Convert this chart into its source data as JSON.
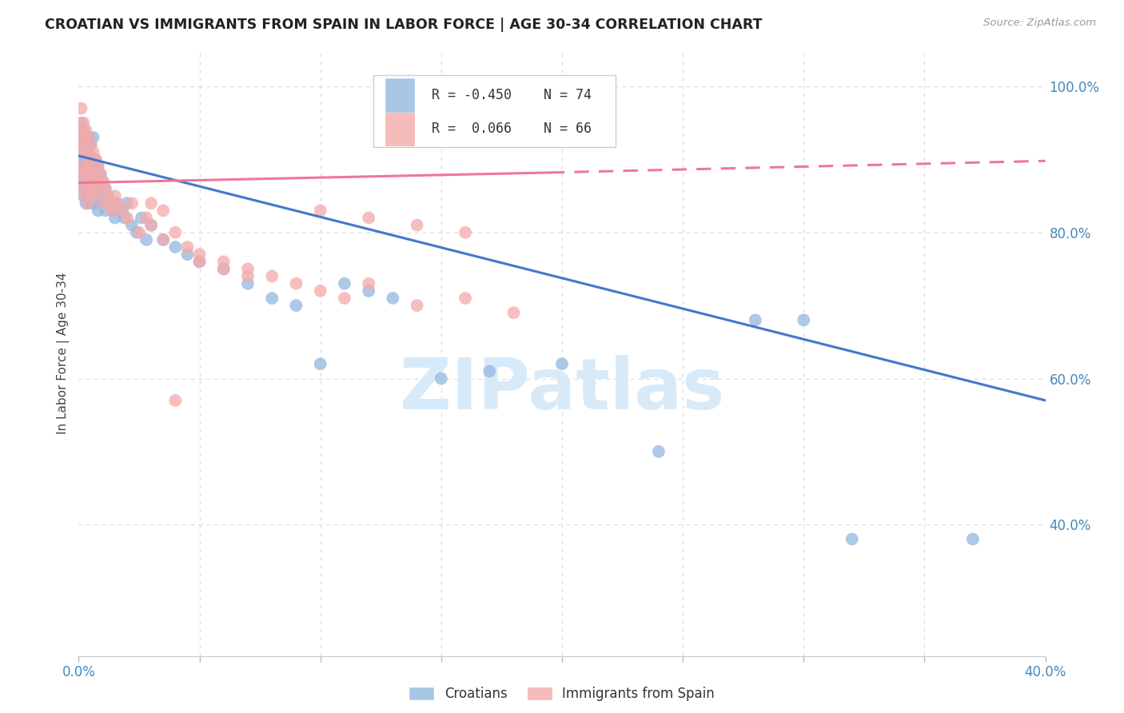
{
  "title": "CROATIAN VS IMMIGRANTS FROM SPAIN IN LABOR FORCE | AGE 30-34 CORRELATION CHART",
  "source": "Source: ZipAtlas.com",
  "ylabel": "In Labor Force | Age 30-34",
  "xlim": [
    0.0,
    0.4
  ],
  "ylim": [
    0.22,
    1.05
  ],
  "ytick_vals": [
    0.4,
    0.6,
    0.8,
    1.0
  ],
  "ytick_labels": [
    "40.0%",
    "60.0%",
    "80.0%",
    "100.0%"
  ],
  "xtick_vals": [
    0.0,
    0.05,
    0.1,
    0.15,
    0.2,
    0.25,
    0.3,
    0.35,
    0.4
  ],
  "xtick_labels": [
    "0.0%",
    "",
    "",
    "",
    "",
    "",
    "",
    "",
    "40.0%"
  ],
  "blue_color": "#92B8E0",
  "pink_color": "#F4AAAA",
  "blue_line_color": "#4477CC",
  "pink_line_color": "#EE7799",
  "blue_line": [
    0.0,
    0.905,
    0.4,
    0.57
  ],
  "pink_solid": [
    0.0,
    0.868,
    0.195,
    0.882
  ],
  "pink_dash": [
    0.195,
    0.882,
    0.4,
    0.898
  ],
  "grid_color": "#DDDDDD",
  "axis_color": "#4488BB",
  "bg_color": "#FFFFFF",
  "watermark_text": "ZIPatlas",
  "watermark_color": "#D8EAF8",
  "legend_R_blue": "-0.450",
  "legend_N_blue": "74",
  "legend_R_pink": "0.066",
  "legend_N_pink": "66",
  "blue_x": [
    0.001,
    0.001,
    0.001,
    0.001,
    0.002,
    0.002,
    0.002,
    0.002,
    0.002,
    0.002,
    0.002,
    0.003,
    0.003,
    0.003,
    0.003,
    0.003,
    0.004,
    0.004,
    0.004,
    0.004,
    0.004,
    0.005,
    0.005,
    0.005,
    0.005,
    0.006,
    0.006,
    0.006,
    0.006,
    0.007,
    0.007,
    0.007,
    0.008,
    0.008,
    0.008,
    0.009,
    0.009,
    0.01,
    0.01,
    0.011,
    0.011,
    0.012,
    0.013,
    0.014,
    0.015,
    0.016,
    0.018,
    0.019,
    0.02,
    0.022,
    0.024,
    0.026,
    0.028,
    0.03,
    0.035,
    0.04,
    0.045,
    0.05,
    0.06,
    0.07,
    0.08,
    0.09,
    0.1,
    0.11,
    0.12,
    0.13,
    0.15,
    0.17,
    0.2,
    0.24,
    0.28,
    0.3,
    0.32,
    0.37
  ],
  "blue_y": [
    0.93,
    0.9,
    0.87,
    0.95,
    0.92,
    0.89,
    0.86,
    0.94,
    0.91,
    0.88,
    0.85,
    0.93,
    0.9,
    0.87,
    0.84,
    0.92,
    0.91,
    0.88,
    0.85,
    0.93,
    0.89,
    0.9,
    0.87,
    0.84,
    0.92,
    0.89,
    0.86,
    0.93,
    0.88,
    0.9,
    0.87,
    0.84,
    0.89,
    0.86,
    0.83,
    0.88,
    0.85,
    0.87,
    0.84,
    0.86,
    0.83,
    0.85,
    0.84,
    0.83,
    0.82,
    0.84,
    0.83,
    0.82,
    0.84,
    0.81,
    0.8,
    0.82,
    0.79,
    0.81,
    0.79,
    0.78,
    0.77,
    0.76,
    0.75,
    0.73,
    0.71,
    0.7,
    0.62,
    0.73,
    0.72,
    0.71,
    0.6,
    0.61,
    0.62,
    0.5,
    0.68,
    0.68,
    0.38,
    0.38
  ],
  "pink_x": [
    0.001,
    0.001,
    0.001,
    0.001,
    0.002,
    0.002,
    0.002,
    0.002,
    0.002,
    0.003,
    0.003,
    0.003,
    0.003,
    0.004,
    0.004,
    0.004,
    0.004,
    0.005,
    0.005,
    0.005,
    0.006,
    0.006,
    0.006,
    0.007,
    0.007,
    0.008,
    0.008,
    0.009,
    0.01,
    0.01,
    0.011,
    0.012,
    0.013,
    0.014,
    0.015,
    0.016,
    0.018,
    0.02,
    0.022,
    0.025,
    0.028,
    0.03,
    0.035,
    0.04,
    0.045,
    0.05,
    0.06,
    0.07,
    0.08,
    0.09,
    0.1,
    0.11,
    0.12,
    0.14,
    0.16,
    0.18,
    0.1,
    0.12,
    0.14,
    0.16,
    0.04,
    0.05,
    0.06,
    0.07,
    0.03,
    0.035
  ],
  "pink_y": [
    0.94,
    0.91,
    0.97,
    0.88,
    0.95,
    0.92,
    0.89,
    0.86,
    0.93,
    0.94,
    0.91,
    0.88,
    0.85,
    0.93,
    0.9,
    0.87,
    0.84,
    0.92,
    0.89,
    0.86,
    0.91,
    0.88,
    0.85,
    0.9,
    0.87,
    0.89,
    0.86,
    0.88,
    0.87,
    0.84,
    0.86,
    0.85,
    0.84,
    0.83,
    0.85,
    0.84,
    0.83,
    0.82,
    0.84,
    0.8,
    0.82,
    0.81,
    0.79,
    0.8,
    0.78,
    0.77,
    0.76,
    0.75,
    0.74,
    0.73,
    0.72,
    0.71,
    0.73,
    0.7,
    0.71,
    0.69,
    0.83,
    0.82,
    0.81,
    0.8,
    0.57,
    0.76,
    0.75,
    0.74,
    0.84,
    0.83
  ]
}
